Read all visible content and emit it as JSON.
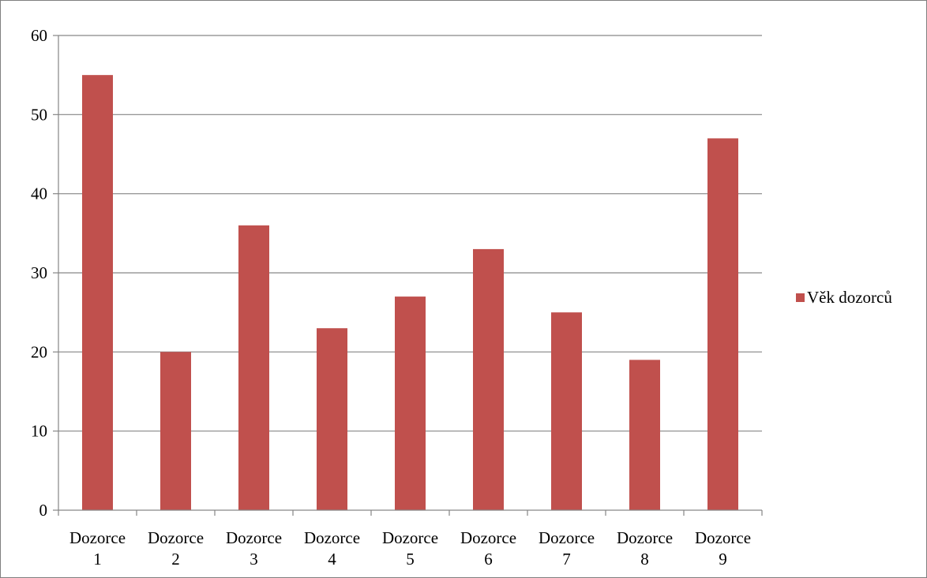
{
  "chart_data": {
    "type": "bar",
    "categories": [
      [
        "Dozorce",
        "1"
      ],
      [
        "Dozorce",
        "2"
      ],
      [
        "Dozorce",
        "3"
      ],
      [
        "Dozorce",
        "4"
      ],
      [
        "Dozorce",
        "5"
      ],
      [
        "Dozorce",
        "6"
      ],
      [
        "Dozorce",
        "7"
      ],
      [
        "Dozorce",
        "8"
      ],
      [
        "Dozorce",
        "9"
      ]
    ],
    "series": [
      {
        "name": "Věk dozorců",
        "color": "#c0504d",
        "values": [
          55,
          20,
          36,
          23,
          27,
          33,
          25,
          19,
          47
        ]
      }
    ],
    "ylim": [
      0,
      60
    ],
    "yticks": [
      0,
      10,
      20,
      30,
      40,
      50,
      60
    ],
    "grid": true,
    "legend_position": "right",
    "title": "",
    "xlabel": "",
    "ylabel": ""
  }
}
